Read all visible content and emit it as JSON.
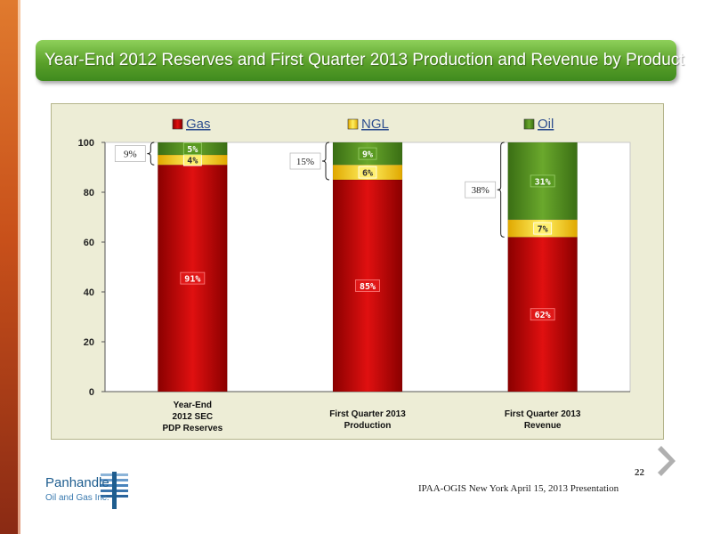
{
  "slide": {
    "title": "Year-End 2012 Reserves and First Quarter 2013 Production and Revenue by Product",
    "page_number": "22",
    "footer": "IPAA-OGIS New York April 15, 2013 Presentation"
  },
  "logo": {
    "name": "Panhandle",
    "subtitle": "Oil and Gas Inc."
  },
  "colors": {
    "gas": "#c00000",
    "ngl": "#ffd700",
    "oil": "#4e8a1e",
    "title_bar": "#5aa02a",
    "chart_bg": "#ededd6"
  },
  "chart_data": {
    "type": "bar",
    "stacked": true,
    "categories": [
      [
        "Year-End",
        "2012 SEC",
        "PDP Reserves"
      ],
      [
        "First Quarter 2013",
        "Production"
      ],
      [
        "First Quarter 2013",
        "Revenue"
      ]
    ],
    "series": [
      {
        "name": "Gas",
        "values": [
          91,
          85,
          62
        ],
        "labels": [
          "91%",
          "85%",
          "62%"
        ]
      },
      {
        "name": "NGL",
        "values": [
          4,
          6,
          7
        ],
        "labels": [
          "4%",
          "6%",
          "7%"
        ]
      },
      {
        "name": "Oil",
        "values": [
          5,
          9,
          31
        ],
        "labels": [
          "5%",
          "9%",
          "31%"
        ]
      }
    ],
    "annotations": [
      "9%",
      "15%",
      "38%"
    ],
    "ylim": [
      0,
      100
    ],
    "yticks": [
      "0",
      "20",
      "40",
      "60",
      "80",
      "100"
    ],
    "legend": "top",
    "grid": false
  }
}
